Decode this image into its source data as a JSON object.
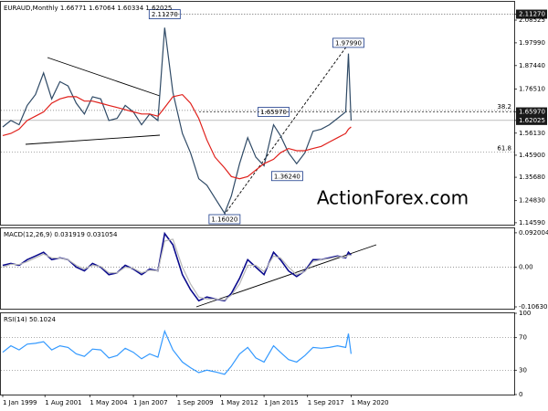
{
  "chart_data": [
    {
      "type": "line",
      "title": "EURAUD,Monthly  1.66771 1.67064 1.60334 1.62025",
      "watermark": "ActionForex.com",
      "x": [
        "1999-01",
        "1999-07",
        "2000-01",
        "2000-07",
        "2001-01",
        "2001-07",
        "2002-01",
        "2002-07",
        "2003-01",
        "2003-07",
        "2004-01",
        "2004-07",
        "2005-01",
        "2005-07",
        "2006-01",
        "2006-07",
        "2007-01",
        "2007-07",
        "2008-01",
        "2008-07",
        "2008-12",
        "2009-06",
        "2010-01",
        "2010-07",
        "2011-01",
        "2011-07",
        "2012-01",
        "2012-08",
        "2013-01",
        "2013-07",
        "2014-01",
        "2014-07",
        "2015-01",
        "2015-08",
        "2016-01",
        "2016-07",
        "2017-01",
        "2017-07",
        "2018-01",
        "2018-07",
        "2019-01",
        "2019-07",
        "2020-01",
        "2020-03",
        "2020-05"
      ],
      "series": [
        {
          "name": "EURAUD",
          "color": "#2f4a66",
          "values": [
            1.59,
            1.62,
            1.6,
            1.69,
            1.74,
            1.84,
            1.72,
            1.8,
            1.78,
            1.7,
            1.65,
            1.73,
            1.72,
            1.62,
            1.63,
            1.69,
            1.66,
            1.6,
            1.65,
            1.62,
            2.05,
            1.75,
            1.56,
            1.47,
            1.35,
            1.32,
            1.26,
            1.19,
            1.27,
            1.42,
            1.54,
            1.45,
            1.41,
            1.6,
            1.55,
            1.47,
            1.42,
            1.47,
            1.57,
            1.58,
            1.6,
            1.63,
            1.66,
            1.93,
            1.62025
          ]
        },
        {
          "name": "SMA",
          "color": "#e0201b",
          "values": [
            1.55,
            1.56,
            1.58,
            1.62,
            1.64,
            1.66,
            1.7,
            1.72,
            1.73,
            1.73,
            1.71,
            1.71,
            1.7,
            1.69,
            1.68,
            1.67,
            1.66,
            1.65,
            1.65,
            1.64,
            1.68,
            1.73,
            1.74,
            1.7,
            1.63,
            1.53,
            1.45,
            1.4,
            1.36,
            1.35,
            1.36,
            1.39,
            1.42,
            1.44,
            1.47,
            1.49,
            1.48,
            1.48,
            1.49,
            1.5,
            1.52,
            1.54,
            1.56,
            1.58,
            1.59
          ]
        }
      ],
      "ylim": [
        1.137,
        2.17
      ],
      "yticks": [
        {
          "value": 2.1127,
          "label": "2.11270"
        },
        {
          "value": 2.08525,
          "label": "2.08525"
        },
        {
          "value": 1.9799,
          "label": "1.97990"
        },
        {
          "value": 1.8744,
          "label": "1.87440"
        },
        {
          "value": 1.7651,
          "label": "1.76510"
        },
        {
          "value": 1.6597,
          "label": "1.65970"
        },
        {
          "value": 1.62025,
          "label": "1.62025"
        },
        {
          "value": 1.5613,
          "label": "1.56130"
        },
        {
          "value": 1.459,
          "label": "1.45900"
        },
        {
          "value": 1.3568,
          "label": "1.35680"
        },
        {
          "value": 1.2483,
          "label": "1.24830"
        },
        {
          "value": 1.1459,
          "label": "1.14590"
        }
      ],
      "annotations": [
        {
          "label": "2.11270",
          "x": "2008-12",
          "value": 2.1127
        },
        {
          "label": "1.97990",
          "x": "2020-03",
          "value": 1.9799
        },
        {
          "label": "1.65970",
          "x": "2015-08",
          "value": 1.6597
        },
        {
          "label": "1.36240",
          "x": "2016-06",
          "value": 1.3624
        },
        {
          "label": "1.16020",
          "x": "2012-08",
          "value": 1.1602
        }
      ],
      "levels": [
        {
          "label": "38.2",
          "value": 1.6668
        },
        {
          "label": "61.8",
          "value": 1.4733
        }
      ]
    },
    {
      "type": "line",
      "title": "MACD(12,26,9)  0.031919  0.031054",
      "x": [
        "1999-01",
        "1999-07",
        "2000-01",
        "2000-07",
        "2001-01",
        "2001-07",
        "2002-01",
        "2002-07",
        "2003-01",
        "2003-07",
        "2004-01",
        "2004-07",
        "2005-01",
        "2005-07",
        "2006-01",
        "2006-07",
        "2007-01",
        "2007-07",
        "2008-01",
        "2008-07",
        "2008-12",
        "2009-06",
        "2010-01",
        "2010-07",
        "2011-01",
        "2011-07",
        "2012-01",
        "2012-08",
        "2013-01",
        "2013-07",
        "2014-01",
        "2014-07",
        "2015-01",
        "2015-08",
        "2016-01",
        "2016-07",
        "2017-01",
        "2017-07",
        "2018-01",
        "2018-07",
        "2019-01",
        "2019-07",
        "2020-01",
        "2020-03",
        "2020-05"
      ],
      "series": [
        {
          "name": "MACD",
          "color": "#0a0a8c",
          "values": [
            0.005,
            0.01,
            0.005,
            0.02,
            0.03,
            0.04,
            0.02,
            0.025,
            0.02,
            0.0,
            -0.01,
            0.01,
            0.0,
            -0.02,
            -0.015,
            0.005,
            -0.005,
            -0.02,
            -0.005,
            -0.01,
            0.09,
            0.06,
            -0.02,
            -0.06,
            -0.09,
            -0.08,
            -0.085,
            -0.09,
            -0.07,
            -0.03,
            0.02,
            0.0,
            -0.02,
            0.04,
            0.02,
            -0.01,
            -0.025,
            -0.01,
            0.02,
            0.02,
            0.025,
            0.03,
            0.025,
            0.04,
            0.031919
          ]
        },
        {
          "name": "Signal",
          "color": "#b8b8b8",
          "values": [
            0.0,
            0.008,
            0.007,
            0.015,
            0.025,
            0.035,
            0.025,
            0.024,
            0.02,
            0.005,
            -0.005,
            0.005,
            0.002,
            -0.015,
            -0.015,
            0.0,
            -0.003,
            -0.015,
            -0.008,
            -0.01,
            0.07,
            0.075,
            0.0,
            -0.045,
            -0.08,
            -0.085,
            -0.085,
            -0.088,
            -0.075,
            -0.045,
            0.005,
            0.005,
            -0.012,
            0.03,
            0.025,
            0.0,
            -0.02,
            -0.012,
            0.015,
            0.02,
            0.023,
            0.028,
            0.027,
            0.033,
            0.031054
          ]
        }
      ],
      "ylim": [
        -0.1112,
        0.104
      ],
      "yticks": [
        {
          "value": 0.092004,
          "label": "0.092004"
        },
        {
          "value": 0,
          "label": "0.00"
        },
        {
          "value": -0.106308,
          "label": "-0.106308"
        }
      ],
      "levels": [
        {
          "value": 0
        }
      ]
    },
    {
      "type": "line",
      "title": "RSI(14) 50.1024",
      "x": [
        "1999-01",
        "1999-07",
        "2000-01",
        "2000-07",
        "2001-01",
        "2001-07",
        "2002-01",
        "2002-07",
        "2003-01",
        "2003-07",
        "2004-01",
        "2004-07",
        "2005-01",
        "2005-07",
        "2006-01",
        "2006-07",
        "2007-01",
        "2007-07",
        "2008-01",
        "2008-07",
        "2008-12",
        "2009-06",
        "2010-01",
        "2010-07",
        "2011-01",
        "2011-07",
        "2012-01",
        "2012-08",
        "2013-01",
        "2013-07",
        "2014-01",
        "2014-07",
        "2015-01",
        "2015-08",
        "2016-01",
        "2016-07",
        "2017-01",
        "2017-07",
        "2018-01",
        "2018-07",
        "2019-01",
        "2019-07",
        "2020-01",
        "2020-03",
        "2020-05"
      ],
      "series": [
        {
          "name": "RSI",
          "color": "#3399ff",
          "values": [
            52,
            60,
            55,
            62,
            63,
            65,
            55,
            60,
            58,
            50,
            47,
            56,
            55,
            45,
            48,
            57,
            52,
            44,
            50,
            46,
            78,
            55,
            40,
            33,
            27,
            30,
            28,
            25,
            35,
            50,
            58,
            45,
            40,
            60,
            52,
            43,
            40,
            48,
            58,
            57,
            58,
            60,
            58,
            75,
            50.1024
          ]
        }
      ],
      "ylim": [
        0,
        100
      ],
      "yticks": [
        100,
        70,
        30,
        0
      ],
      "levels": [
        {
          "value": 70
        },
        {
          "value": 30
        }
      ],
      "xticks": [
        {
          "value": "1999-01",
          "label": "1 Jan 1999"
        },
        {
          "value": "2001-08",
          "label": "1 Aug 2001"
        },
        {
          "value": "2004-05",
          "label": "1 May 2004"
        },
        {
          "value": "2007-01",
          "label": "1 Jan 2007"
        },
        {
          "value": "2009-09",
          "label": "1 Sep 2009"
        },
        {
          "value": "2012-05",
          "label": "1 May 2012"
        },
        {
          "value": "2015-01",
          "label": "1 Jan 2015"
        },
        {
          "value": "2017-09",
          "label": "1 Sep 2017"
        },
        {
          "value": "2020-05",
          "label": "1 May 2020"
        }
      ]
    }
  ]
}
